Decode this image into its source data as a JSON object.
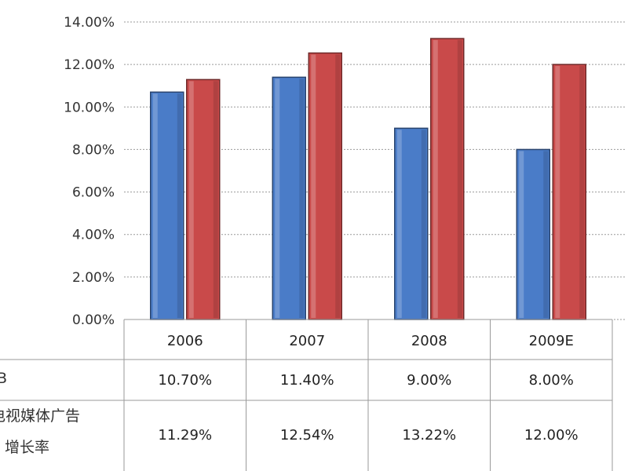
{
  "chart_data": {
    "type": "bar",
    "categories": [
      "2006",
      "2007",
      "2008",
      "2009E"
    ],
    "series": [
      {
        "values": [
          10.7,
          11.4,
          9.0,
          8.0
        ],
        "color": "#4a7cc8"
      },
      {
        "values": [
          11.29,
          12.54,
          13.22,
          12.0
        ],
        "color": "#c94a4a"
      }
    ],
    "ylim": [
      0,
      14
    ],
    "y_ticks": [
      "0.00%",
      "2.00%",
      "4.00%",
      "6.00%",
      "8.00%",
      "10.00%",
      "12.00%",
      "14.00%"
    ],
    "grid": true,
    "data_table": {
      "row_labels": [
        "B",
        "电视媒体广告",
        "增长率"
      ],
      "rows": [
        [
          "10.70%",
          "11.40%",
          "9.00%",
          "8.00%"
        ],
        [
          "11.29%",
          "12.54%",
          "13.22%",
          "12.00%"
        ]
      ]
    }
  }
}
